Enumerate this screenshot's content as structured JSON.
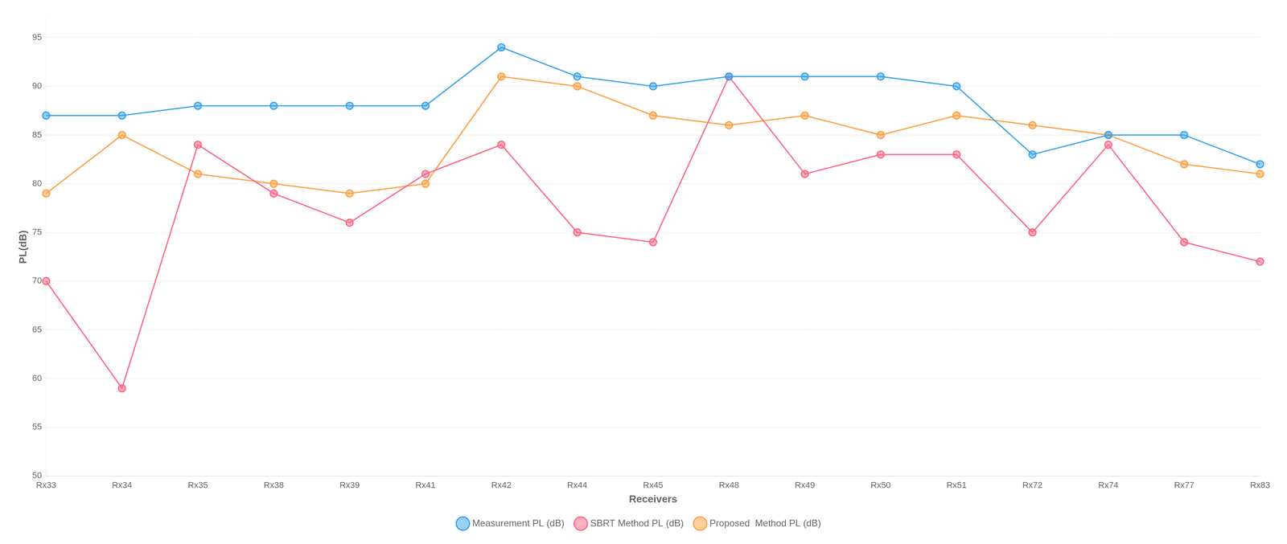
{
  "chart_data": {
    "type": "line",
    "categories": [
      "Rx33",
      "Rx34",
      "Rx35",
      "Rx38",
      "Rx39",
      "Rx41",
      "Rx42",
      "Rx44",
      "Rx45",
      "Rx48",
      "Rx49",
      "Rx50",
      "Rx51",
      "Rx72",
      "Rx74",
      "Rx77",
      "Rx83"
    ],
    "series": [
      {
        "name": "Measurement PL (dB)",
        "values": [
          87,
          87,
          88,
          88,
          88,
          88,
          94,
          91,
          90,
          91,
          91,
          91,
          90,
          83,
          85,
          85,
          82
        ]
      },
      {
        "name": "SBRT Method PL (dB)",
        "values": [
          70,
          59,
          84,
          79,
          76,
          81,
          84,
          75,
          74,
          91,
          81,
          83,
          83,
          75,
          84,
          74,
          72
        ]
      },
      {
        "name": "Proposed  Method PL (dB)",
        "values": [
          79,
          85,
          81,
          80,
          79,
          80,
          91,
          90,
          87,
          86,
          87,
          85,
          87,
          86,
          85,
          82,
          81
        ]
      }
    ],
    "xlabel": "Receivers",
    "ylabel": "PL(dB)",
    "ylim": [
      50,
      97
    ],
    "yticks": [
      50,
      55,
      60,
      65,
      70,
      75,
      80,
      85,
      90,
      95
    ],
    "grid": true,
    "legend": "bottom",
    "marker": "circle"
  }
}
